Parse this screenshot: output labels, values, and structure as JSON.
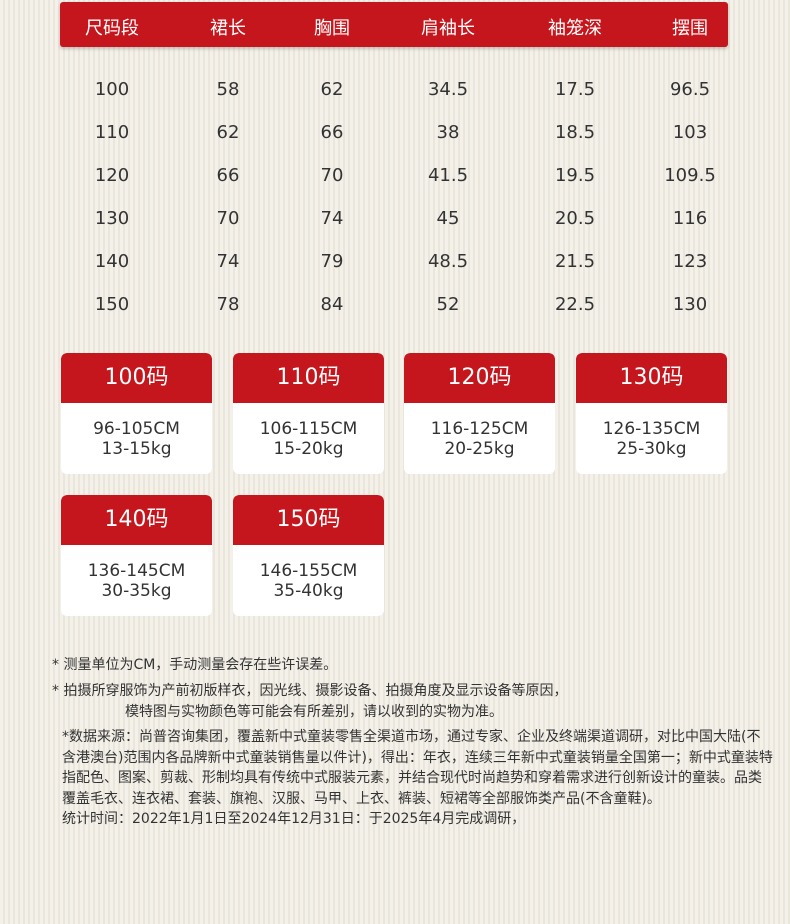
{
  "colors": {
    "accent": "#c4161c",
    "background": "#f4f1ea"
  },
  "table": {
    "headers": [
      "尺码段",
      "裙长",
      "胸围",
      "肩袖长",
      "袖笼深",
      "摆围"
    ],
    "rows": [
      [
        "100",
        "58",
        "62",
        "34.5",
        "17.5",
        "96.5"
      ],
      [
        "110",
        "62",
        "66",
        "38",
        "18.5",
        "103"
      ],
      [
        "120",
        "66",
        "70",
        "41.5",
        "19.5",
        "109.5"
      ],
      [
        "130",
        "70",
        "74",
        "45",
        "20.5",
        "116"
      ],
      [
        "140",
        "74",
        "79",
        "48.5",
        "21.5",
        "123"
      ],
      [
        "150",
        "78",
        "84",
        "52",
        "22.5",
        "130"
      ]
    ]
  },
  "cards": [
    {
      "size": "100码",
      "height": "96-105CM",
      "weight": "13-15kg"
    },
    {
      "size": "110码",
      "height": "106-115CM",
      "weight": "15-20kg"
    },
    {
      "size": "120码",
      "height": "116-125CM",
      "weight": "20-25kg"
    },
    {
      "size": "130码",
      "height": "126-135CM",
      "weight": "25-30kg"
    },
    {
      "size": "140码",
      "height": "136-145CM",
      "weight": "30-35kg"
    },
    {
      "size": "150码",
      "height": "146-155CM",
      "weight": "35-40kg"
    }
  ],
  "notes": {
    "line1": "* 测量单位为CM，手动测量会存在些许误差。",
    "line2": "* 拍摄所穿服饰为产前初版样衣，因光线、摄影设备、拍摄角度及显示设备等原因，",
    "line3": "模特图与实物颜色等可能会有所差别，请以收到的实物为准。",
    "source": "*数据来源：尚普咨询集团，覆盖新中式童装零售全渠道市场，通过专家、企业及终端渠道调研，对比中国大陆(不含港澳台)范围内各品牌新中式童装销售量以件计)，得出：年衣，连续三年新中式童装销量全国第一；新中式童装特指配色、图案、剪裁、形制均具有传统中式服装元素，并结合现代时尚趋势和穿着需求进行创新设计的童装。品类覆盖毛衣、连衣裙、套装、旗袍、汉服、马甲、上衣、裤装、短裙等全部服饰类产品(不含童鞋)。",
    "period": "统计时间：2022年1月1日至2024年12月31日：于2025年4月完成调研，"
  }
}
